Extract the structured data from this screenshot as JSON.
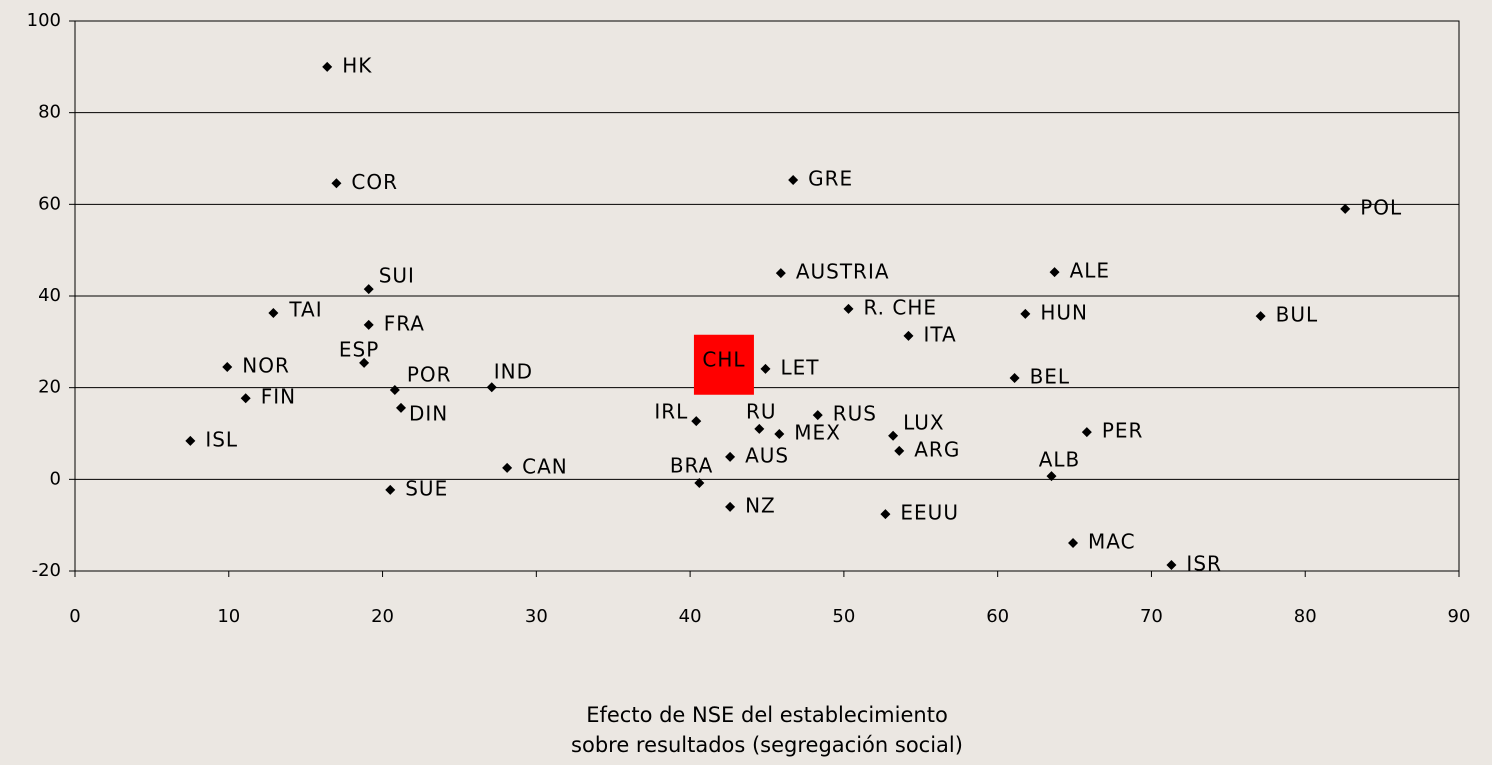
{
  "chart_data": {
    "type": "scatter",
    "x_label_lines": [
      "Efecto de NSE del establecimiento",
      "sobre resultados (segregación social)"
    ],
    "labels": [
      "HK",
      "COR",
      "GRE",
      "POL",
      "SUI",
      "AUSTRIA",
      "ALE",
      "TAI",
      "FRA",
      "R. CHE",
      "HUN",
      "BUL",
      "ITA",
      "ESP",
      "NOR",
      "LET",
      "CHL",
      "BEL",
      "POR",
      "IND",
      "FIN",
      "DIN",
      "IRL",
      "RUS",
      "RU",
      "MEX",
      "LUX",
      "PER",
      "ISL",
      "ARG",
      "AUS",
      "CAN",
      "ALB",
      "BRA",
      "SUE",
      "NZ",
      "EEUU",
      "MAC",
      "ISR"
    ],
    "x": [
      16.4,
      17.0,
      46.7,
      82.6,
      19.1,
      45.9,
      63.7,
      12.9,
      19.1,
      50.3,
      61.8,
      77.1,
      54.2,
      18.8,
      9.9,
      44.9,
      42.2,
      61.1,
      20.8,
      27.1,
      11.1,
      21.2,
      40.4,
      48.3,
      44.5,
      45.8,
      53.2,
      65.8,
      7.5,
      53.6,
      42.6,
      28.1,
      63.5,
      40.6,
      20.5,
      42.6,
      52.7,
      64.9,
      71.3
    ],
    "values": [
      90.0,
      64.6,
      65.3,
      59.0,
      41.5,
      45.0,
      45.2,
      36.3,
      33.7,
      37.2,
      36.1,
      35.6,
      31.3,
      25.4,
      24.5,
      24.1,
      25.0,
      22.1,
      19.5,
      20.1,
      17.7,
      15.6,
      12.7,
      14.0,
      11.0,
      9.9,
      9.5,
      10.3,
      8.4,
      6.2,
      4.9,
      2.5,
      0.7,
      -0.8,
      -2.3,
      -6.0,
      -7.6,
      -13.9,
      -18.7
    ],
    "color": "#000000",
    "highlight_index": 16,
    "highlight_color": "#ff0000",
    "xlim": [
      0,
      90
    ],
    "xticks": [
      0,
      10,
      20,
      30,
      40,
      50,
      60,
      70,
      80,
      90
    ],
    "ylim": [
      -20,
      100
    ],
    "yticks": [
      -20,
      0,
      20,
      40,
      60,
      80,
      100
    ],
    "grid": true
  }
}
